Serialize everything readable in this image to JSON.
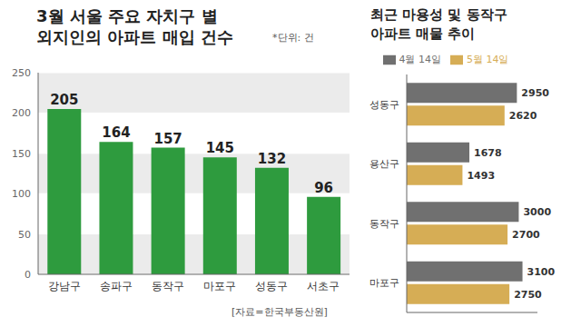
{
  "chart_data": [
    {
      "type": "bar",
      "title": "3월 서울 주요 자치구 별\n외지인의 아파트 매입 건수",
      "annotations": [
        "*단위: 건",
        "[자료=한국부동산원]"
      ],
      "categories": [
        "강남구",
        "송파구",
        "동작구",
        "마포구",
        "성동구",
        "서초구"
      ],
      "values": [
        205,
        164,
        157,
        145,
        132,
        96
      ],
      "color": "#2e9b3e",
      "ylim": [
        0,
        250
      ],
      "yticks": [
        0,
        50,
        100,
        150,
        200,
        250
      ],
      "grid": true,
      "data_labels": true
    },
    {
      "type": "bar",
      "orientation": "horizontal",
      "title": "최근 마용성 및 동작구\n아파트 매물 추이",
      "categories": [
        "성동구",
        "용산구",
        "동작구",
        "마포구"
      ],
      "series": [
        {
          "name": "4월 14일",
          "color": "#707070",
          "values": [
            2950,
            1678,
            3000,
            3100
          ]
        },
        {
          "name": "5월 14일",
          "color": "#d6ad55",
          "values": [
            2620,
            1493,
            2700,
            2750
          ]
        }
      ],
      "xlim": [
        0,
        3500
      ],
      "tick_labels": "y",
      "data_labels": true,
      "legend": "top"
    }
  ]
}
